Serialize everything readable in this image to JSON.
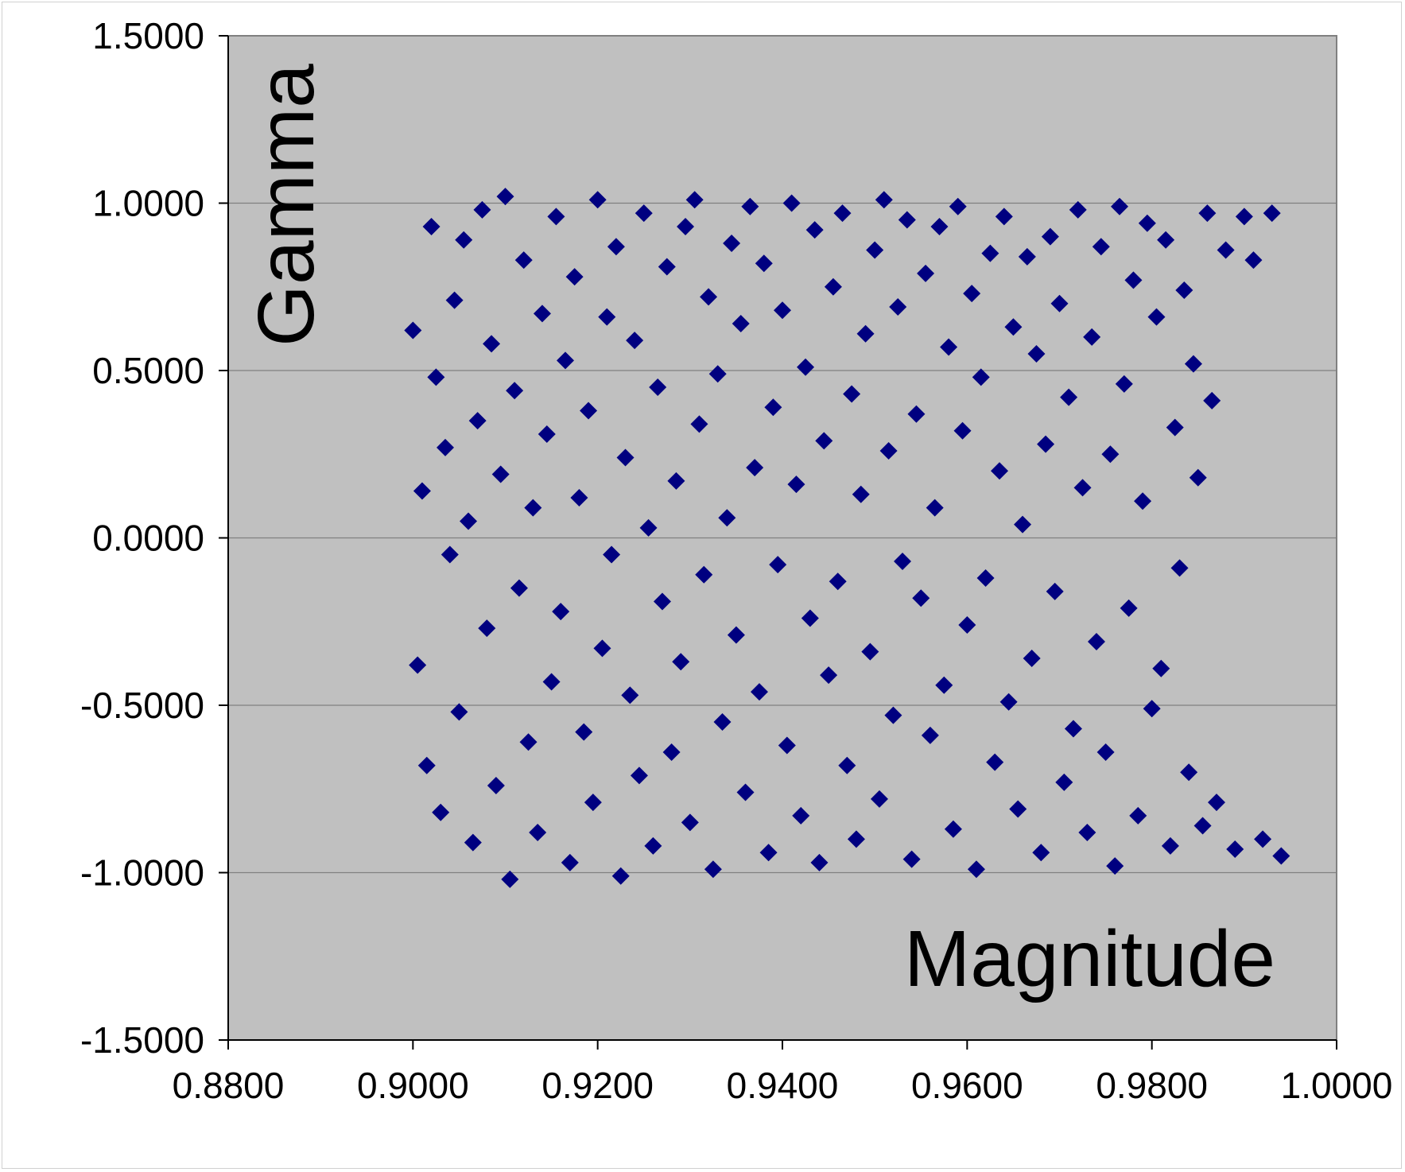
{
  "chart_data": {
    "type": "scatter",
    "title": "",
    "xlabel": "Magnitude",
    "ylabel": "Gamma",
    "xlim": [
      0.88,
      1.0
    ],
    "ylim": [
      -1.5,
      1.5
    ],
    "x_ticks": [
      "0.8800",
      "0.9000",
      "0.9200",
      "0.9400",
      "0.9600",
      "0.9800",
      "1.0000"
    ],
    "y_ticks": [
      "1.5000",
      "1.0000",
      "0.5000",
      "0.0000",
      "-0.5000",
      "-1.0000",
      "-1.5000"
    ],
    "grid": "horizontal",
    "marker": "diamond",
    "series": [
      {
        "color": "#000080",
        "x": [
          0.9,
          0.9005,
          0.901,
          0.9015,
          0.902,
          0.9025,
          0.903,
          0.9035,
          0.904,
          0.9045,
          0.905,
          0.9055,
          0.906,
          0.9065,
          0.907,
          0.9075,
          0.908,
          0.9085,
          0.909,
          0.9095,
          0.91,
          0.9105,
          0.911,
          0.9115,
          0.912,
          0.9125,
          0.913,
          0.9135,
          0.914,
          0.9145,
          0.915,
          0.9155,
          0.916,
          0.9165,
          0.917,
          0.9175,
          0.918,
          0.9185,
          0.919,
          0.9195,
          0.92,
          0.9205,
          0.921,
          0.9215,
          0.922,
          0.9225,
          0.923,
          0.9235,
          0.924,
          0.9245,
          0.925,
          0.9255,
          0.926,
          0.9265,
          0.927,
          0.9275,
          0.928,
          0.9285,
          0.929,
          0.9295,
          0.93,
          0.9305,
          0.931,
          0.9315,
          0.932,
          0.9325,
          0.933,
          0.9335,
          0.934,
          0.9345,
          0.935,
          0.9355,
          0.936,
          0.9365,
          0.937,
          0.9375,
          0.938,
          0.9385,
          0.939,
          0.9395,
          0.94,
          0.9405,
          0.941,
          0.9415,
          0.942,
          0.9425,
          0.943,
          0.9435,
          0.944,
          0.9445,
          0.945,
          0.9455,
          0.946,
          0.9465,
          0.947,
          0.9475,
          0.948,
          0.9485,
          0.949,
          0.9495,
          0.95,
          0.9505,
          0.951,
          0.9515,
          0.952,
          0.9525,
          0.953,
          0.9535,
          0.954,
          0.9545,
          0.955,
          0.9555,
          0.956,
          0.9565,
          0.957,
          0.9575,
          0.958,
          0.9585,
          0.959,
          0.9595,
          0.96,
          0.9605,
          0.961,
          0.9615,
          0.962,
          0.9625,
          0.963,
          0.9635,
          0.964,
          0.9645,
          0.965,
          0.9655,
          0.966,
          0.9665,
          0.967,
          0.9675,
          0.968,
          0.9685,
          0.969,
          0.9695,
          0.97,
          0.9705,
          0.971,
          0.9715,
          0.972,
          0.9725,
          0.973,
          0.9735,
          0.974,
          0.9745,
          0.975,
          0.9755,
          0.976,
          0.9765,
          0.977,
          0.9775,
          0.978,
          0.9785,
          0.979,
          0.9795,
          0.98,
          0.9805,
          0.981,
          0.9815,
          0.982,
          0.9825,
          0.983,
          0.9835,
          0.984,
          0.9845,
          0.985,
          0.9855,
          0.986,
          0.9865,
          0.987,
          0.988,
          0.989,
          0.99,
          0.991,
          0.992,
          0.993,
          0.994
        ],
        "y": [
          0.62,
          -0.38,
          0.14,
          -0.68,
          0.93,
          0.48,
          -0.82,
          0.27,
          -0.05,
          0.71,
          -0.52,
          0.89,
          0.05,
          -0.91,
          0.35,
          0.98,
          -0.27,
          0.58,
          -0.74,
          0.19,
          1.02,
          -1.02,
          0.44,
          -0.15,
          0.83,
          -0.61,
          0.09,
          -0.88,
          0.67,
          0.31,
          -0.43,
          0.96,
          -0.22,
          0.53,
          -0.97,
          0.78,
          0.12,
          -0.58,
          0.38,
          -0.79,
          1.01,
          -0.33,
          0.66,
          -0.05,
          0.87,
          -1.01,
          0.24,
          -0.47,
          0.59,
          -0.71,
          0.97,
          0.03,
          -0.92,
          0.45,
          -0.19,
          0.81,
          -0.64,
          0.17,
          -0.37,
          0.93,
          -0.85,
          1.01,
          0.34,
          -0.11,
          0.72,
          -0.99,
          0.49,
          -0.55,
          0.06,
          0.88,
          -0.29,
          0.64,
          -0.76,
          0.99,
          0.21,
          -0.46,
          0.82,
          -0.94,
          0.39,
          -0.08,
          0.68,
          -0.62,
          1.0,
          0.16,
          -0.83,
          0.51,
          -0.24,
          0.92,
          -0.97,
          0.29,
          -0.41,
          0.75,
          -0.13,
          0.97,
          -0.68,
          0.43,
          -0.9,
          0.13,
          0.61,
          -0.34,
          0.86,
          -0.78,
          1.01,
          0.26,
          -0.53,
          0.69,
          -0.07,
          0.95,
          -0.96,
          0.37,
          -0.18,
          0.79,
          -0.59,
          0.09,
          0.93,
          -0.44,
          0.57,
          -0.87,
          0.99,
          0.32,
          -0.26,
          0.73,
          -0.99,
          0.48,
          -0.12,
          0.85,
          -0.67,
          0.2,
          0.96,
          -0.49,
          0.63,
          -0.81,
          0.04,
          0.84,
          -0.36,
          0.55,
          -0.94,
          0.28,
          0.9,
          -0.16,
          0.7,
          -0.73,
          0.42,
          -0.57,
          0.98,
          0.15,
          -0.88,
          0.6,
          -0.31,
          0.87,
          -0.64,
          0.25,
          -0.98,
          0.99,
          0.46,
          -0.21,
          0.77,
          -0.83,
          0.11,
          0.94,
          -0.51,
          0.66,
          -0.39,
          0.89,
          -0.92,
          0.33,
          -0.09,
          0.74,
          -0.7,
          0.52,
          0.18,
          -0.86,
          0.97,
          0.41,
          -0.79,
          0.86,
          -0.93,
          0.96,
          0.83,
          -0.9,
          0.97,
          -0.95
        ]
      }
    ]
  }
}
